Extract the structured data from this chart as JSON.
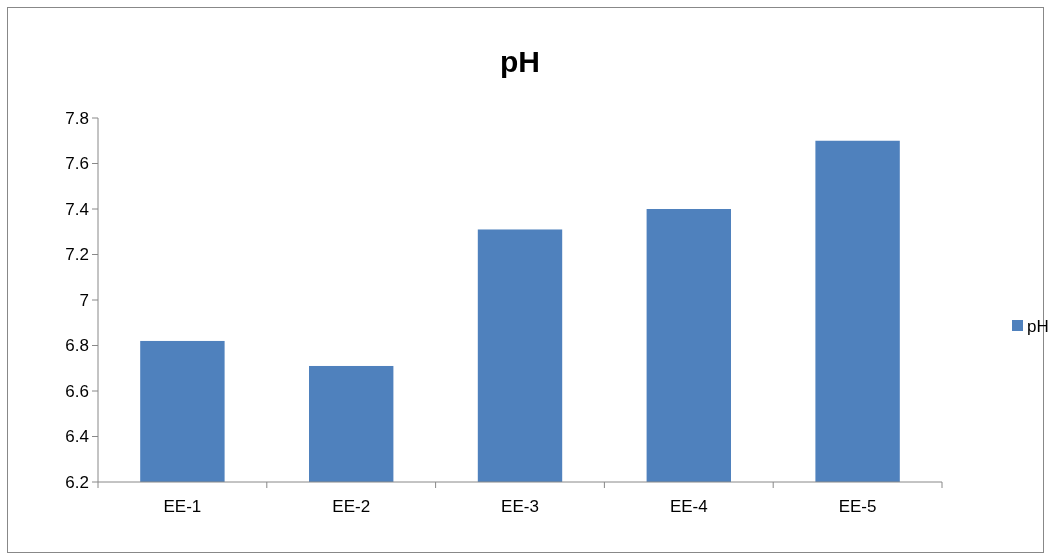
{
  "chart_data": {
    "type": "bar",
    "title": "pH",
    "categories": [
      "EE-1",
      "EE-2",
      "EE-3",
      "EE-4",
      "EE-5"
    ],
    "series": [
      {
        "name": "pH",
        "color": "#4f81bd",
        "values": [
          6.82,
          6.71,
          7.31,
          7.4,
          7.7
        ]
      }
    ],
    "ylim": [
      6.2,
      7.8
    ],
    "yticks": [
      6.2,
      6.4,
      6.6,
      6.8,
      {
        "value": 7,
        "label": "7"
      },
      7.2,
      7.4,
      7.6,
      7.8
    ],
    "grid": false,
    "legend": "right"
  }
}
